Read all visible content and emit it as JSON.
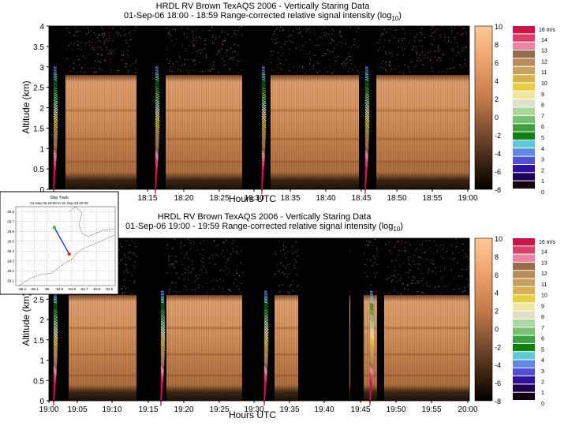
{
  "charts": [
    {
      "id": "top",
      "title_line1": "HRDL RV Brown TexAQS 2006 - Vertically Staring Data",
      "title_line2_prefix": "01-Sep-06 18:00 - 18:59 Range-corrected relative signal intensity (log",
      "title_line2_sub": "10",
      "title_line2_suffix": ")",
      "ylabel": "Altitude (km)",
      "xlabel": "Hours UTC"
    },
    {
      "id": "bottom",
      "title_line1": "HRDL RV Brown TexAQS 2006 - Vertically Staring Data",
      "title_line2_prefix": "01-Sep-06 19:00 - 19:59 Range-corrected relative signal intensity (log",
      "title_line2_sub": "10",
      "title_line2_suffix": ")",
      "ylabel": "Altitude (km)",
      "xlabel": "Hours UTC"
    }
  ],
  "chart_data": [
    {
      "type": "heatmap",
      "title": "HRDL RV Brown TexAQS 2006 - Vertically Staring Data",
      "subtitle": "01-Sep-06 18:00 - 18:59 Range-corrected relative signal intensity (log10)",
      "xlabel": "Hours UTC",
      "ylabel": "Altitude (km)",
      "x_ticks": [
        "18:15",
        "18:20",
        "18:25",
        "18:30",
        "18:35",
        "18:40",
        "18:45",
        "18:50",
        "18:55",
        "19:00"
      ],
      "y_ticks": [
        "0",
        "0.5",
        "1",
        "1.5",
        "2",
        "2.5",
        "3",
        "3.5",
        "4"
      ],
      "ylim": [
        0,
        4
      ],
      "x_range_hours": [
        18.0,
        19.0
      ],
      "boundary_layer_top_km": 2.8,
      "wind_profile_gaps": [
        {
          "start": 18.05,
          "end": 18.2
        },
        {
          "start": 18.43,
          "end": 18.56
        },
        {
          "start": 18.72,
          "end": 18.78
        }
      ],
      "colorbar": {
        "label_ticks": [
          "10",
          "8",
          "6",
          "4",
          "2",
          "0",
          "-2",
          "-4",
          "-6",
          "-8"
        ],
        "min": -8,
        "max": 10
      }
    },
    {
      "type": "heatmap",
      "title": "HRDL RV Brown TexAQS 2006 - Vertically Staring Data",
      "subtitle": "01-Sep-06 19:00 - 19:59 Range-corrected relative signal intensity (log10)",
      "xlabel": "Hours UTC",
      "ylabel": "Altitude (km)",
      "x_ticks": [
        "19:00",
        "19:05",
        "19:10",
        "19:15",
        "19:20",
        "19:25",
        "19:30",
        "19:35",
        "19:40",
        "19:45",
        "19:50",
        "19:55",
        "20:00"
      ],
      "y_ticks": [
        "0",
        "0.5",
        "1",
        "1.5",
        "2",
        "2.5",
        "3",
        "3.5",
        "4"
      ],
      "ylim": [
        0,
        4
      ],
      "x_range_hours": [
        19.0,
        20.0
      ],
      "boundary_layer_top_km": 2.6,
      "colorbar": {
        "label_ticks": [
          "10",
          "8",
          "6",
          "4",
          "2",
          "0",
          "-2",
          "-4",
          "-6",
          "-8"
        ],
        "min": -8,
        "max": 10
      }
    }
  ],
  "wind_legend": {
    "unit_label": "16 m/s",
    "labels": [
      "14",
      "13",
      "12",
      "11",
      "10",
      "9",
      "8",
      "7",
      "6",
      "5",
      "4",
      "3",
      "2",
      "1",
      "0"
    ],
    "colors": [
      "#c8144a",
      "#d8406a",
      "#e884a4",
      "#9a6a4a",
      "#b88a5e",
      "#c8a060",
      "#d8b050",
      "#e8d040",
      "#f0e6a0",
      "#e0e0c8",
      "#a8d8a0",
      "#78c070",
      "#40a040",
      "#108010",
      "#60c8d8",
      "#6088e0",
      "#5050d0",
      "#3010a0",
      "#200050",
      "#100010"
    ]
  },
  "inset": {
    "title": "Ship Track",
    "subtitle": "01-Sep-06 18:00 to 01-Sep-23:20:30",
    "y_ticks": [
      "29.8",
      "29.7",
      "29.6",
      "29.5",
      "29.4",
      "29.3",
      "29.2",
      "29.1"
    ],
    "x_ticks": [
      "-95.2",
      "-95.1",
      "-95",
      "-94.9",
      "-94.8",
      "-94.7",
      "-94.6",
      "-94.5"
    ],
    "track": [
      {
        "lon": -94.94,
        "lat": 29.64
      },
      {
        "lon": -94.9,
        "lat": 29.55
      },
      {
        "lon": -94.86,
        "lat": 29.46
      },
      {
        "lon": -94.82,
        "lat": 29.37
      }
    ],
    "start_marker": {
      "lon": -94.94,
      "lat": 29.64,
      "color": "#40c040"
    },
    "end_marker": {
      "lon": -94.82,
      "lat": 29.37,
      "color": "#e03030"
    }
  },
  "colors": {
    "plume": "#d4935a",
    "plume_dark": "#6a4528",
    "background": "#000000",
    "track": "#2040c0"
  }
}
